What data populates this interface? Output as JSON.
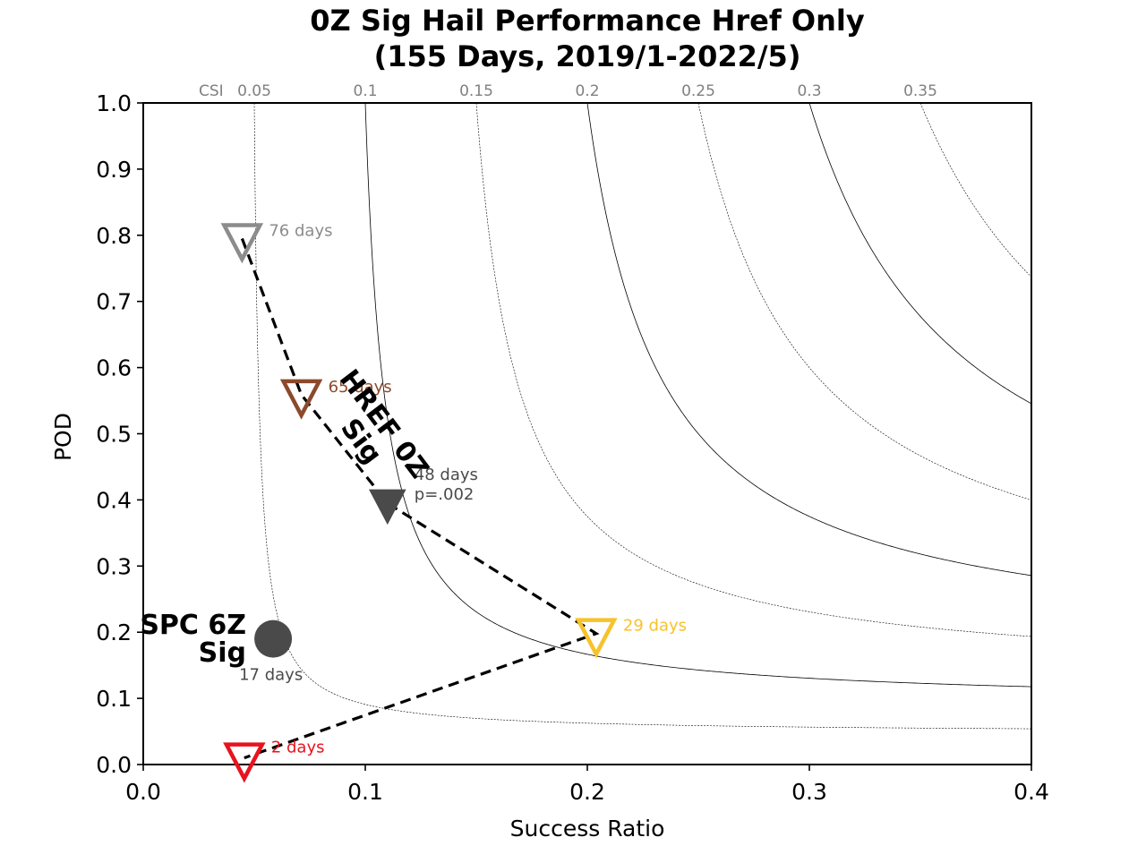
{
  "chart_data": {
    "type": "scatter",
    "title_lines": [
      "0Z Sig Hail Performance Href Only",
      "(155 Days, 2019/1-2022/5)"
    ],
    "xlabel": "Success Ratio",
    "ylabel": "POD",
    "xlim": [
      0.0,
      0.4
    ],
    "ylim": [
      0.0,
      1.0
    ],
    "x_ticks": [
      0.0,
      0.1,
      0.2,
      0.3,
      0.4
    ],
    "x_tick_labels": [
      "0.0",
      "0.1",
      "0.2",
      "0.3",
      "0.4"
    ],
    "y_ticks": [
      0.0,
      0.1,
      0.2,
      0.3,
      0.4,
      0.5,
      0.6,
      0.7,
      0.8,
      0.9,
      1.0
    ],
    "y_tick_labels": [
      "0.0",
      "0.1",
      "0.2",
      "0.3",
      "0.4",
      "0.5",
      "0.6",
      "0.7",
      "0.8",
      "0.9",
      "1.0"
    ],
    "csi_prefix": "CSI",
    "csi_contours": [
      {
        "value": 0.05,
        "label": "0.05",
        "style": "dotted"
      },
      {
        "value": 0.1,
        "label": "0.1",
        "style": "solid"
      },
      {
        "value": 0.15,
        "label": "0.15",
        "style": "dotted"
      },
      {
        "value": 0.2,
        "label": "0.2",
        "style": "solid"
      },
      {
        "value": 0.25,
        "label": "0.25",
        "style": "dotted"
      },
      {
        "value": 0.3,
        "label": "0.3",
        "style": "solid"
      },
      {
        "value": 0.35,
        "label": "0.35",
        "style": "dotted"
      }
    ],
    "points": [
      {
        "x": 0.0445,
        "y": 0.795,
        "marker": "triangle-down-open",
        "color": "#8c8c8c",
        "label": "76 days"
      },
      {
        "x": 0.0712,
        "y": 0.559,
        "marker": "triangle-down-open",
        "color": "#8b4a2b",
        "label": "65 days"
      },
      {
        "x": 0.11,
        "y": 0.395,
        "marker": "triangle-down-filled",
        "color": "#4a4a4a",
        "label": "48 days",
        "sublabel": "p=.002"
      },
      {
        "x": 0.204,
        "y": 0.198,
        "marker": "triangle-down-open",
        "color": "#f7c22b",
        "label": "29 days"
      },
      {
        "x": 0.0455,
        "y": 0.01,
        "marker": "triangle-down-open",
        "color": "#e8131f",
        "label": "2 days"
      },
      {
        "x": 0.0585,
        "y": 0.19,
        "marker": "circle-filled",
        "color": "#4a4a4a",
        "label": "17 days"
      }
    ],
    "series": [
      {
        "name": "HREF 0Z Sig",
        "path": [
          [
            0.0445,
            0.795
          ],
          [
            0.0712,
            0.559
          ],
          [
            0.11,
            0.395
          ],
          [
            0.204,
            0.198
          ],
          [
            0.0455,
            0.01
          ]
        ],
        "style": "dashed"
      }
    ],
    "annotations": [
      {
        "text_lines": [
          "SPC 6Z",
          "Sig"
        ],
        "color": "#000000"
      },
      {
        "text_lines": [
          "HREF 0Z",
          "Sig"
        ],
        "color": "#000000"
      }
    ]
  }
}
